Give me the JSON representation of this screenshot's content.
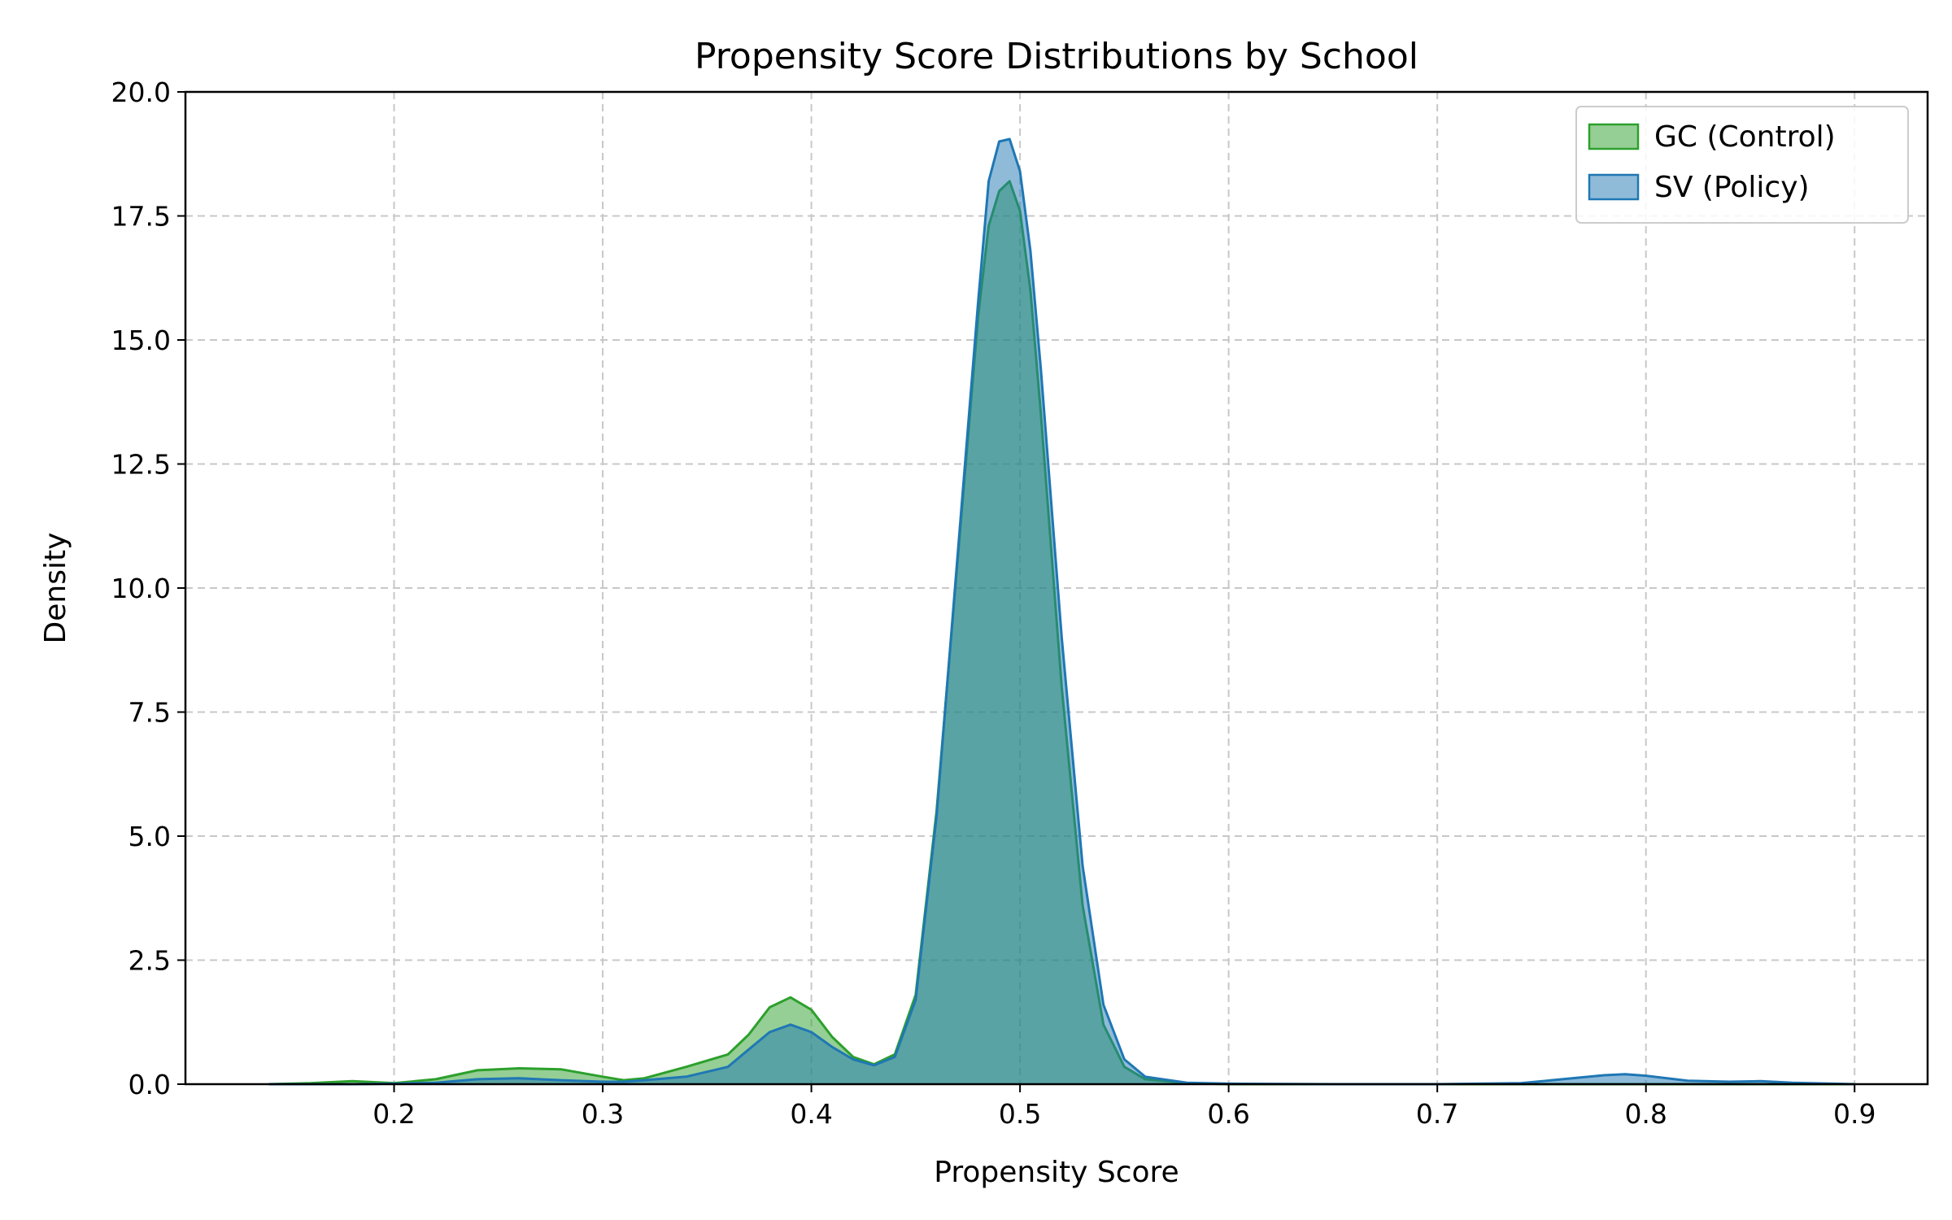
{
  "chart_data": {
    "type": "area",
    "title": "Propensity Score Distributions by School",
    "xlabel": "Propensity Score",
    "ylabel": "Density",
    "xlim": [
      0.1,
      0.935
    ],
    "ylim": [
      0,
      20
    ],
    "xticks": [
      0.2,
      0.3,
      0.4,
      0.5,
      0.6,
      0.7,
      0.8,
      0.9
    ],
    "xtick_labels": [
      "0.2",
      "0.3",
      "0.4",
      "0.5",
      "0.6",
      "0.7",
      "0.8",
      "0.9"
    ],
    "yticks": [
      0,
      2.5,
      5,
      7.5,
      10,
      12.5,
      15,
      17.5,
      20
    ],
    "ytick_labels": [
      "0.0",
      "2.5",
      "5.0",
      "7.5",
      "10.0",
      "12.5",
      "15.0",
      "17.5",
      "20.0"
    ],
    "grid": true,
    "legend_position": "top-right",
    "series": [
      {
        "name": "GC (Control)",
        "color": "#2ca02c",
        "x": [
          0.14,
          0.16,
          0.18,
          0.2,
          0.22,
          0.24,
          0.26,
          0.28,
          0.3,
          0.31,
          0.32,
          0.34,
          0.36,
          0.37,
          0.38,
          0.39,
          0.4,
          0.41,
          0.42,
          0.43,
          0.44,
          0.45,
          0.46,
          0.47,
          0.48,
          0.485,
          0.49,
          0.495,
          0.5,
          0.505,
          0.51,
          0.52,
          0.53,
          0.54,
          0.55,
          0.56,
          0.58,
          0.6,
          0.65,
          0.7,
          0.75,
          0.8,
          0.85,
          0.9
        ],
        "y": [
          0.0,
          0.02,
          0.06,
          0.02,
          0.1,
          0.28,
          0.32,
          0.3,
          0.15,
          0.08,
          0.12,
          0.35,
          0.6,
          1.0,
          1.55,
          1.75,
          1.5,
          0.95,
          0.55,
          0.4,
          0.6,
          1.8,
          5.5,
          10.5,
          15.5,
          17.3,
          18.0,
          18.2,
          17.6,
          16.0,
          13.5,
          8.0,
          3.6,
          1.2,
          0.35,
          0.1,
          0.02,
          0.0,
          0.0,
          0.0,
          0.0,
          0.0,
          0.0,
          0.0
        ]
      },
      {
        "name": "SV (Policy)",
        "color": "#1f77b4",
        "x": [
          0.14,
          0.16,
          0.18,
          0.2,
          0.22,
          0.24,
          0.26,
          0.28,
          0.3,
          0.31,
          0.32,
          0.34,
          0.36,
          0.37,
          0.38,
          0.39,
          0.4,
          0.41,
          0.42,
          0.43,
          0.44,
          0.45,
          0.46,
          0.47,
          0.48,
          0.485,
          0.49,
          0.495,
          0.5,
          0.505,
          0.51,
          0.52,
          0.53,
          0.54,
          0.55,
          0.56,
          0.58,
          0.6,
          0.65,
          0.7,
          0.74,
          0.76,
          0.78,
          0.79,
          0.8,
          0.82,
          0.84,
          0.855,
          0.87,
          0.9
        ],
        "y": [
          0.0,
          0.0,
          0.0,
          0.01,
          0.03,
          0.1,
          0.12,
          0.08,
          0.05,
          0.05,
          0.08,
          0.15,
          0.35,
          0.7,
          1.05,
          1.2,
          1.05,
          0.75,
          0.5,
          0.38,
          0.55,
          1.7,
          5.4,
          10.6,
          15.8,
          18.2,
          19.0,
          19.05,
          18.4,
          16.8,
          14.4,
          9.0,
          4.4,
          1.6,
          0.5,
          0.15,
          0.03,
          0.01,
          0.0,
          0.0,
          0.02,
          0.1,
          0.18,
          0.2,
          0.17,
          0.07,
          0.05,
          0.06,
          0.03,
          0.0
        ]
      }
    ]
  }
}
